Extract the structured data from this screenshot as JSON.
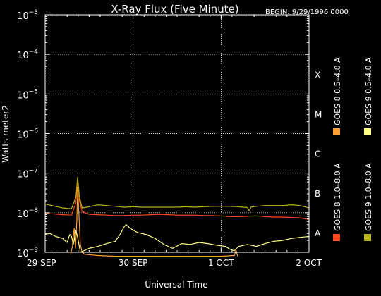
{
  "chart_data": {
    "type": "line",
    "title": "X-Ray Flux (Five Minute)",
    "begin_label": "BEGIN: 9/29/1996 0000",
    "xlabel": "Universal Time",
    "ylabel": "Watts meter2",
    "x_range_days": [
      0,
      3
    ],
    "x_ticks": [
      {
        "day": 0,
        "label": "29 SEP"
      },
      {
        "day": 1,
        "label": "30 SEP"
      },
      {
        "day": 2,
        "label": "1 OCT"
      },
      {
        "day": 3,
        "label": "2 OCT"
      }
    ],
    "y_log_range": [
      -9,
      -3
    ],
    "y_ticks": [
      {
        "exp": -3,
        "base": "10",
        "sup": "−3"
      },
      {
        "exp": -4,
        "base": "10",
        "sup": "−4"
      },
      {
        "exp": -5,
        "base": "10",
        "sup": "−5"
      },
      {
        "exp": -6,
        "base": "10",
        "sup": "−6"
      },
      {
        "exp": -7,
        "base": "10",
        "sup": "−7"
      },
      {
        "exp": -8,
        "base": "10",
        "sup": "−8"
      },
      {
        "exp": -9,
        "base": "10",
        "sup": "−9"
      }
    ],
    "flare_classes": [
      {
        "exp": -4,
        "label": "X"
      },
      {
        "exp": -5,
        "label": "M"
      },
      {
        "exp": -6,
        "label": "C"
      },
      {
        "exp": -7,
        "label": "B"
      },
      {
        "exp": -8,
        "label": "A"
      }
    ],
    "legend_placement": "right, vertical",
    "series": [
      {
        "name": "GOES 8 1.0–8.0 A",
        "color": "#ff4a1c",
        "points": [
          [
            0,
            -8.02
          ],
          [
            0.1,
            -8.03
          ],
          [
            0.2,
            -8.05
          ],
          [
            0.3,
            -8.06
          ],
          [
            0.35,
            -7.75
          ],
          [
            0.37,
            -7.15
          ],
          [
            0.39,
            -7.7
          ],
          [
            0.42,
            -7.97
          ],
          [
            0.5,
            -8.04
          ],
          [
            0.6,
            -8.05
          ],
          [
            0.7,
            -8.06
          ],
          [
            0.8,
            -8.07
          ],
          [
            0.9,
            -8.07
          ],
          [
            1.0,
            -8.06
          ],
          [
            1.1,
            -8.06
          ],
          [
            1.2,
            -8.05
          ],
          [
            1.3,
            -8.04
          ],
          [
            1.4,
            -8.05
          ],
          [
            1.5,
            -8.06
          ],
          [
            1.6,
            -8.06
          ],
          [
            1.7,
            -8.06
          ],
          [
            1.8,
            -8.07
          ],
          [
            1.9,
            -8.07
          ],
          [
            2.0,
            -8.08
          ],
          [
            2.1,
            -8.1
          ],
          [
            2.2,
            -8.1
          ],
          [
            2.3,
            -8.09
          ],
          [
            2.4,
            -8.08
          ],
          [
            2.5,
            -8.1
          ],
          [
            2.6,
            -8.11
          ],
          [
            2.7,
            -8.11
          ],
          [
            2.8,
            -8.12
          ],
          [
            2.9,
            -8.13
          ],
          [
            3.0,
            -8.17
          ]
        ]
      },
      {
        "name": "GOES 8 0.5–4.0 A",
        "color": "#ffa030",
        "points": [
          [
            0.29,
            -9.05
          ],
          [
            0.31,
            -8.85
          ],
          [
            0.33,
            -8.4
          ],
          [
            0.345,
            -8.9
          ],
          [
            0.36,
            -8.2
          ],
          [
            0.37,
            -7.35
          ],
          [
            0.385,
            -8.1
          ],
          [
            0.4,
            -8.8
          ],
          [
            0.42,
            -9.0
          ],
          [
            0.45,
            -9.05
          ],
          [
            0.6,
            -9.08
          ],
          [
            0.8,
            -9.1
          ],
          [
            1.0,
            -9.1
          ],
          [
            1.5,
            -9.1
          ],
          [
            2.0,
            -9.1
          ],
          [
            2.15,
            -9.08
          ],
          [
            2.17,
            -8.95
          ],
          [
            2.19,
            -9.1
          ]
        ]
      },
      {
        "name": "GOES 9 0.5–4.0 A",
        "color": "#ffff80",
        "points": [
          [
            0,
            -8.55
          ],
          [
            0.05,
            -8.52
          ],
          [
            0.12,
            -8.6
          ],
          [
            0.2,
            -8.65
          ],
          [
            0.25,
            -8.75
          ],
          [
            0.28,
            -8.55
          ],
          [
            0.3,
            -8.6
          ],
          [
            0.32,
            -8.8
          ],
          [
            0.35,
            -8.45
          ],
          [
            0.37,
            -8.62
          ],
          [
            0.4,
            -9.0
          ],
          [
            0.5,
            -8.9
          ],
          [
            0.6,
            -8.85
          ],
          [
            0.7,
            -8.78
          ],
          [
            0.8,
            -8.72
          ],
          [
            0.85,
            -8.55
          ],
          [
            0.9,
            -8.35
          ],
          [
            0.92,
            -8.3
          ],
          [
            0.97,
            -8.4
          ],
          [
            1.05,
            -8.5
          ],
          [
            1.15,
            -8.55
          ],
          [
            1.25,
            -8.65
          ],
          [
            1.35,
            -8.8
          ],
          [
            1.45,
            -8.9
          ],
          [
            1.55,
            -8.78
          ],
          [
            1.65,
            -8.8
          ],
          [
            1.75,
            -8.75
          ],
          [
            1.85,
            -8.78
          ],
          [
            1.95,
            -8.82
          ],
          [
            2.05,
            -8.85
          ],
          [
            2.1,
            -8.92
          ],
          [
            2.15,
            -8.96
          ],
          [
            2.2,
            -8.85
          ],
          [
            2.3,
            -8.8
          ],
          [
            2.4,
            -8.85
          ],
          [
            2.5,
            -8.78
          ],
          [
            2.6,
            -8.72
          ],
          [
            2.7,
            -8.7
          ],
          [
            2.8,
            -8.65
          ],
          [
            2.9,
            -8.62
          ],
          [
            3.0,
            -8.6
          ]
        ]
      },
      {
        "name": "GOES 9 1.0–8.0 A",
        "color": "#b4b414",
        "points": [
          [
            0,
            -7.78
          ],
          [
            0.1,
            -7.83
          ],
          [
            0.2,
            -7.88
          ],
          [
            0.3,
            -7.9
          ],
          [
            0.35,
            -7.6
          ],
          [
            0.37,
            -7.1
          ],
          [
            0.39,
            -7.6
          ],
          [
            0.42,
            -7.88
          ],
          [
            0.5,
            -7.85
          ],
          [
            0.6,
            -7.8
          ],
          [
            0.7,
            -7.82
          ],
          [
            0.8,
            -7.84
          ],
          [
            0.9,
            -7.86
          ],
          [
            1.0,
            -7.85
          ],
          [
            1.1,
            -7.86
          ],
          [
            1.2,
            -7.86
          ],
          [
            1.3,
            -7.86
          ],
          [
            1.4,
            -7.86
          ],
          [
            1.5,
            -7.86
          ],
          [
            1.6,
            -7.85
          ],
          [
            1.7,
            -7.86
          ],
          [
            1.8,
            -7.85
          ],
          [
            1.9,
            -7.84
          ],
          [
            2.0,
            -7.84
          ],
          [
            2.1,
            -7.84
          ],
          [
            2.2,
            -7.85
          ],
          [
            2.3,
            -7.87
          ],
          [
            2.32,
            -7.95
          ],
          [
            2.34,
            -7.86
          ],
          [
            2.4,
            -7.84
          ],
          [
            2.5,
            -7.82
          ],
          [
            2.6,
            -7.82
          ],
          [
            2.7,
            -7.82
          ],
          [
            2.8,
            -7.8
          ],
          [
            2.9,
            -7.82
          ],
          [
            3.0,
            -7.88
          ]
        ]
      }
    ]
  }
}
